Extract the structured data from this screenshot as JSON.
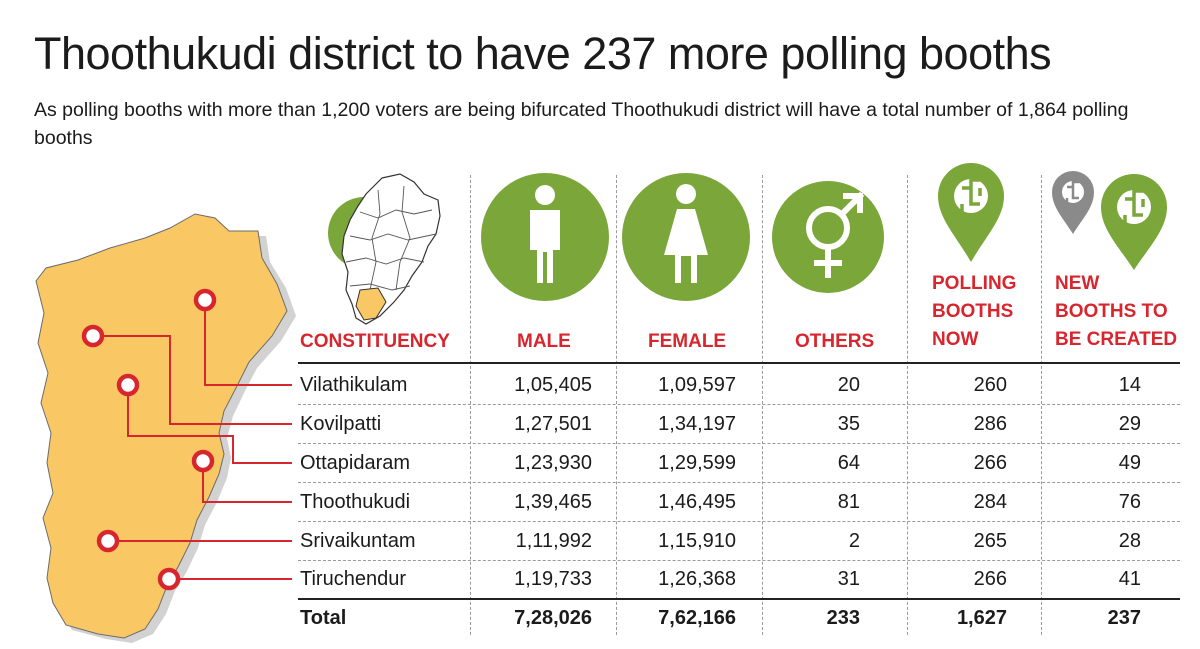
{
  "header": {
    "title": "Thoothukudi district to have 237 more polling booths",
    "subtitle": "As polling booths with more than 1,200 voters are being bifurcated Thoothukudi district will have a total number of 1,864 polling booths"
  },
  "colors": {
    "accent_red": "#d7262e",
    "icon_green": "#7aa63a",
    "icon_grey": "#8a8a8a",
    "map_fill": "#f9c864",
    "map_shadow": "#d2d2d2"
  },
  "icons": [
    "tamil-nadu-map-icon",
    "male-icon",
    "female-icon",
    "others-gender-icon",
    "polling-booth-pin-icon",
    "new-booth-pins-icon"
  ],
  "chart_data": {
    "type": "table",
    "columns": [
      {
        "key": "constituency",
        "label": "CONSTITUENCY"
      },
      {
        "key": "male",
        "label": "MALE"
      },
      {
        "key": "female",
        "label": "FEMALE"
      },
      {
        "key": "others",
        "label": "OTHERS"
      },
      {
        "key": "booths_now",
        "label_lines": [
          "POLLING",
          "BOOTHS",
          "NOW"
        ]
      },
      {
        "key": "new_booths",
        "label_lines": [
          "NEW",
          "BOOTHS TO",
          "BE CREATED"
        ]
      }
    ],
    "rows": [
      {
        "constituency": "Vilathikulam",
        "male": "1,05,405",
        "female": "1,09,597",
        "others": "20",
        "booths_now": "260",
        "new_booths": "14"
      },
      {
        "constituency": "Kovilpatti",
        "male": "1,27,501",
        "female": "1,34,197",
        "others": "35",
        "booths_now": "286",
        "new_booths": "29"
      },
      {
        "constituency": "Ottapidaram",
        "male": "1,23,930",
        "female": "1,29,599",
        "others": "64",
        "booths_now": "266",
        "new_booths": "49"
      },
      {
        "constituency": "Thoothukudi",
        "male": "1,39,465",
        "female": "1,46,495",
        "others": "81",
        "booths_now": "284",
        "new_booths": "76"
      },
      {
        "constituency": "Srivaikuntam",
        "male": "1,11,992",
        "female": "1,15,910",
        "others": "2",
        "booths_now": "265",
        "new_booths": "28"
      },
      {
        "constituency": "Tiruchendur",
        "male": "1,19,733",
        "female": "1,26,368",
        "others": "31",
        "booths_now": "266",
        "new_booths": "41"
      }
    ],
    "total": {
      "constituency": "Total",
      "male": "7,28,026",
      "female": "7,62,166",
      "others": "233",
      "booths_now": "1,627",
      "new_booths": "237"
    }
  }
}
